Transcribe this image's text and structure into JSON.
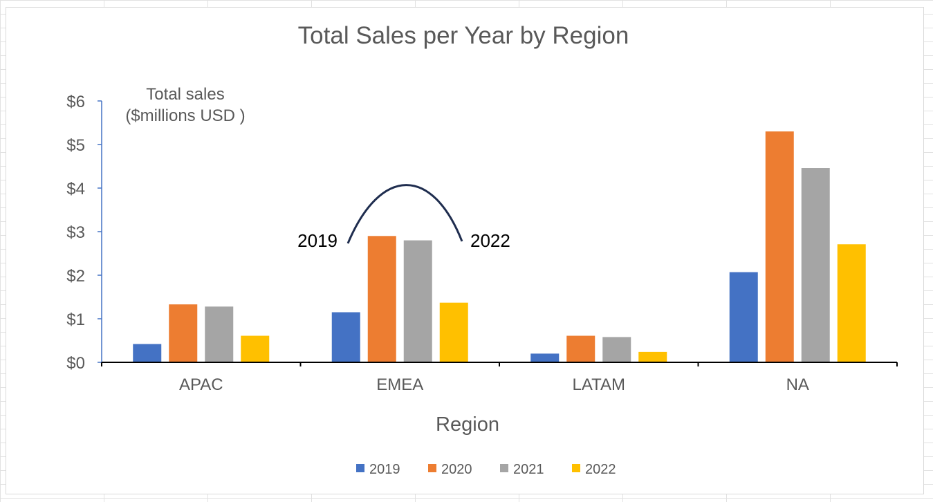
{
  "chart_data": {
    "type": "bar",
    "title": "Total Sales per Year  by Region",
    "xlabel": "Region",
    "ylabel_lines": [
      "Total sales",
      "($millions USD )"
    ],
    "categories": [
      "APAC",
      "EMEA",
      "LATAM",
      "NA"
    ],
    "series": [
      {
        "name": "2019",
        "color": "#4472C4",
        "values": [
          0.42,
          1.15,
          0.2,
          2.07
        ]
      },
      {
        "name": "2020",
        "color": "#ED7D31",
        "values": [
          1.33,
          2.9,
          0.61,
          5.3
        ]
      },
      {
        "name": "2021",
        "color": "#A5A5A5",
        "values": [
          1.28,
          2.8,
          0.58,
          4.46
        ]
      },
      {
        "name": "2022",
        "color": "#FFC000",
        "values": [
          0.61,
          1.37,
          0.24,
          2.71
        ]
      }
    ],
    "ylim": [
      0,
      6
    ],
    "yticks": [
      {
        "value": 0,
        "label": "$0"
      },
      {
        "value": 1,
        "label": "$1"
      },
      {
        "value": 2,
        "label": "$2"
      },
      {
        "value": 3,
        "label": "$3"
      },
      {
        "value": 4,
        "label": "$4"
      },
      {
        "value": 5,
        "label": "$5"
      },
      {
        "value": 6,
        "label": "$6"
      }
    ],
    "grid": false,
    "legend_position": "bottom",
    "annotations": {
      "left_label": "2019",
      "right_label": "2022"
    }
  }
}
